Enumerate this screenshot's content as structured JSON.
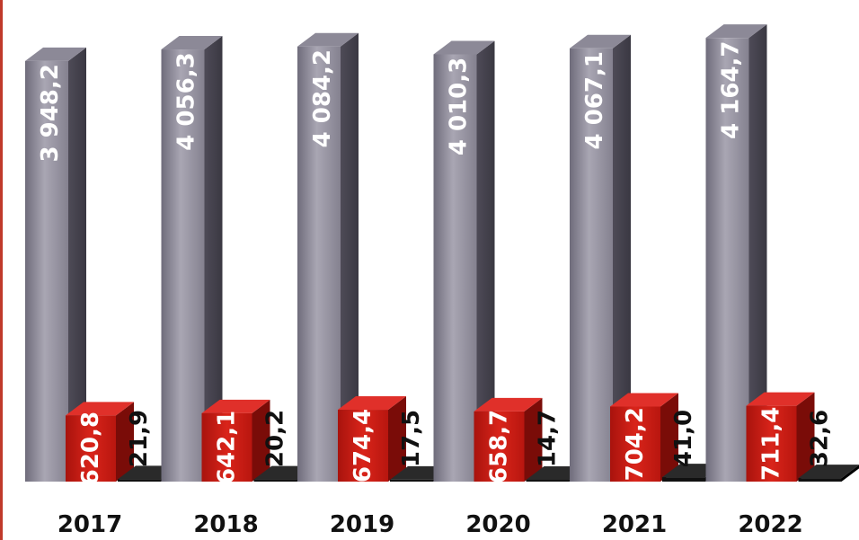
{
  "chart_data": {
    "type": "bar",
    "categories": [
      "2017",
      "2018",
      "2019",
      "2020",
      "2021",
      "2022"
    ],
    "series": [
      {
        "values": [
          3948.2,
          4056.3,
          4084.2,
          4010.3,
          4067.1,
          4164.7
        ],
        "labels": [
          "3 948,2",
          "4 056,3",
          "4 084,2",
          "4 010,3",
          "4 067,1",
          "4 164,7"
        ],
        "color": "#9c99a8"
      },
      {
        "values": [
          620.8,
          642.1,
          674.4,
          658.7,
          704.2,
          711.4
        ],
        "labels": [
          "620,8",
          "642,1",
          "674,4",
          "658,7",
          "704,2",
          "711,4"
        ],
        "color": "#c41a12"
      },
      {
        "values": [
          21.9,
          20.2,
          17.5,
          14.7,
          41.0,
          32.6
        ],
        "labels": [
          "21,9",
          "20,2",
          "17,5",
          "14,7",
          "41,0",
          "32,6"
        ],
        "color": "#111111"
      }
    ],
    "title": "",
    "xlabel": "",
    "ylabel": "",
    "ylim": [
      0,
      4200
    ],
    "grid": false,
    "legend": "none",
    "style": "3d-bars-with-vertical-value-labels"
  }
}
